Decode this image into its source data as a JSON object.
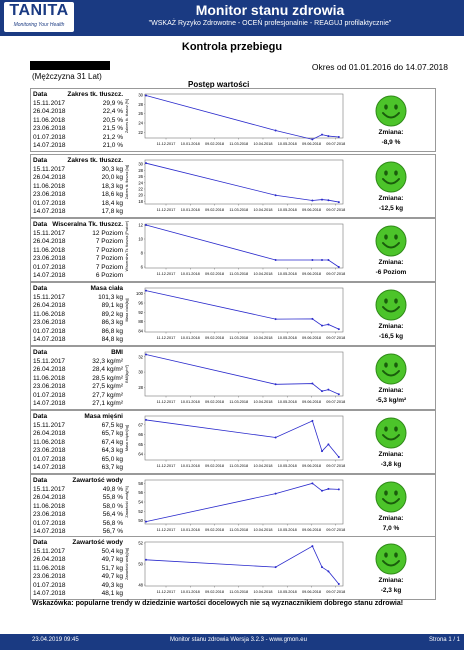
{
  "header": {
    "brand": "TANITA",
    "tagline": "Monitoring Your Health",
    "title": "Monitor stanu zdrowia",
    "subtitle": "\"WSKAŻ Ryzyko Zdrowotne - OCEŃ profesjonalnie - REAGUJ profilaktycznie\""
  },
  "page_title": "Kontrola przebiegu",
  "period": "Okres od 01.01.2016 do 14.07.2018",
  "patient": "(Mężczyzna 31 Lat)",
  "section_title": "Postęp wartości",
  "x_ticks": [
    "11.12.2017",
    "10.01.2018",
    "09.02.2018",
    "11.03.2018",
    "10.04.2018",
    "10.05.2018",
    "09.06.2018",
    "09.07.2018"
  ],
  "change_label": "Zmiana:",
  "panels": [
    {
      "title_left": "Data",
      "title_right": "Zakres tk. tłuszcz.",
      "ylabel": "Zakres tk. tłuszcz.[%]",
      "rows": [
        [
          "15.11.2017",
          "29,9 %"
        ],
        [
          "26.04.2018",
          "22,4 %"
        ],
        [
          "11.06.2018",
          "20,5 %"
        ],
        [
          "23.06.2018",
          "21,5 %"
        ],
        [
          "01.07.2018",
          "21,2 %"
        ],
        [
          "14.07.2018",
          "21,0 %"
        ]
      ],
      "values": [
        29.9,
        22.4,
        20.5,
        21.5,
        21.2,
        21.0
      ],
      "yticks": [
        "30",
        "28",
        "26",
        "24",
        "22"
      ],
      "ylim": [
        21,
        30
      ],
      "change": "-8,9 %"
    },
    {
      "title_left": "Data",
      "title_right": "Zakres tk. tłuszcz.",
      "ylabel": "Zakres tk. tłuszcz.[kg]",
      "rows": [
        [
          "15.11.2017",
          "30,3 kg"
        ],
        [
          "26.04.2018",
          "20,0 kg"
        ],
        [
          "11.06.2018",
          "18,3 kg"
        ],
        [
          "23.06.2018",
          "18,6 kg"
        ],
        [
          "01.07.2018",
          "18,4 kg"
        ],
        [
          "14.07.2018",
          "17,8 kg"
        ]
      ],
      "values": [
        30.3,
        20.0,
        18.3,
        18.6,
        18.4,
        17.8
      ],
      "yticks": [
        "30",
        "28",
        "26",
        "24",
        "22",
        "20",
        "18"
      ],
      "ylim": [
        17.5,
        31
      ],
      "change": "-12,5 kg"
    },
    {
      "title_left": "Data",
      "title_right": "Wisceralna Tk. tłuszcz.",
      "ylabel": "Wisceralna Tk. tłuszcz.[Poziom]",
      "rows": [
        [
          "15.11.2017",
          "12 Poziom"
        ],
        [
          "26.04.2018",
          "7 Poziom"
        ],
        [
          "11.06.2018",
          "7 Poziom"
        ],
        [
          "23.06.2018",
          "7 Poziom"
        ],
        [
          "01.07.2018",
          "7 Poziom"
        ],
        [
          "14.07.2018",
          "6 Poziom"
        ]
      ],
      "values": [
        12,
        7,
        7,
        7,
        7,
        6
      ],
      "yticks": [
        "12",
        "10",
        "8",
        "6"
      ],
      "ylim": [
        6,
        12
      ],
      "change": "-6 Poziom"
    },
    {
      "title_left": "Data",
      "title_right": "Masa ciała",
      "ylabel": "Masa ciała[kg]",
      "rows": [
        [
          "15.11.2017",
          "101,3 kg"
        ],
        [
          "26.04.2018",
          "89,1 kg"
        ],
        [
          "11.06.2018",
          "89,2 kg"
        ],
        [
          "23.06.2018",
          "86,3 kg"
        ],
        [
          "01.07.2018",
          "86,8 kg"
        ],
        [
          "14.07.2018",
          "84,8 kg"
        ]
      ],
      "values": [
        101.3,
        89.1,
        89.2,
        86.3,
        86.8,
        84.8
      ],
      "yticks": [
        "100",
        "96",
        "92",
        "88",
        "84"
      ],
      "ylim": [
        84,
        102
      ],
      "change": "-16,5 kg"
    },
    {
      "title_left": "Data",
      "title_right": "BMI",
      "ylabel": "BMI[kg/m²]",
      "rows": [
        [
          "15.11.2017",
          "32,3 kg/m²"
        ],
        [
          "26.04.2018",
          "28,4 kg/m²"
        ],
        [
          "11.06.2018",
          "28,5 kg/m²"
        ],
        [
          "23.06.2018",
          "27,5 kg/m²"
        ],
        [
          "01.07.2018",
          "27,7 kg/m²"
        ],
        [
          "14.07.2018",
          "27,1 kg/m²"
        ]
      ],
      "values": [
        32.3,
        28.4,
        28.5,
        27.5,
        27.7,
        27.1
      ],
      "yticks": [
        "32",
        "30",
        "28"
      ],
      "ylim": [
        27,
        32.5
      ],
      "change": "-5,3 kg/m²"
    },
    {
      "title_left": "Data",
      "title_right": "Masa mięśni",
      "ylabel": "Masa mięśni[kg]",
      "rows": [
        [
          "15.11.2017",
          "67,5 kg"
        ],
        [
          "26.04.2018",
          "65,7 kg"
        ],
        [
          "11.06.2018",
          "67,4 kg"
        ],
        [
          "23.06.2018",
          "64,3 kg"
        ],
        [
          "01.07.2018",
          "65,0 kg"
        ],
        [
          "14.07.2018",
          "63,7 kg"
        ]
      ],
      "values": [
        67.5,
        65.7,
        67.4,
        64.3,
        65.0,
        63.7
      ],
      "yticks": [
        "67",
        "66",
        "65",
        "64"
      ],
      "ylim": [
        63.5,
        67.8
      ],
      "change": "-3,8 kg"
    },
    {
      "title_left": "Data",
      "title_right": "Zawartość wody",
      "ylabel": "Zawartość wody[%]",
      "rows": [
        [
          "15.11.2017",
          "49,8 %"
        ],
        [
          "26.04.2018",
          "55,8 %"
        ],
        [
          "11.06.2018",
          "58,0 %"
        ],
        [
          "23.06.2018",
          "56,4 %"
        ],
        [
          "01.07.2018",
          "56,8 %"
        ],
        [
          "14.07.2018",
          "56,7 %"
        ]
      ],
      "values": [
        49.8,
        55.8,
        58.0,
        56.4,
        56.8,
        56.7
      ],
      "yticks": [
        "58",
        "56",
        "54",
        "52",
        "50"
      ],
      "ylim": [
        49.5,
        58.5
      ],
      "change": "7,0 %"
    },
    {
      "title_left": "Data",
      "title_right": "Zawartość wody",
      "ylabel": "Zawartość wody[kg]",
      "rows": [
        [
          "15.11.2017",
          "50,4 kg"
        ],
        [
          "26.04.2018",
          "49,7 kg"
        ],
        [
          "11.06.2018",
          "51,7 kg"
        ],
        [
          "23.06.2018",
          "49,7 kg"
        ],
        [
          "01.07.2018",
          "49,3 kg"
        ],
        [
          "14.07.2018",
          "48,1 kg"
        ]
      ],
      "values": [
        50.4,
        49.7,
        51.7,
        49.7,
        49.3,
        48.1
      ],
      "yticks": [
        "52",
        "50",
        "48"
      ],
      "ylim": [
        48,
        52
      ],
      "change": "-2,3 kg"
    }
  ],
  "tip": "Wskazówka: popularne trendy w dziedzinie wartości docelowych nie są wyznacznikiem dobrego stanu zdrowia!",
  "footer": {
    "date": "23.04.2019 09:45",
    "app": "Monitor stanu zdrowia Wersja 3.2.3 - www.gmon.eu",
    "page": "Strona 1 / 1"
  },
  "colors": {
    "header": "#1a3a82",
    "line": "#2a2acc",
    "smiley": "#4cc42a"
  }
}
